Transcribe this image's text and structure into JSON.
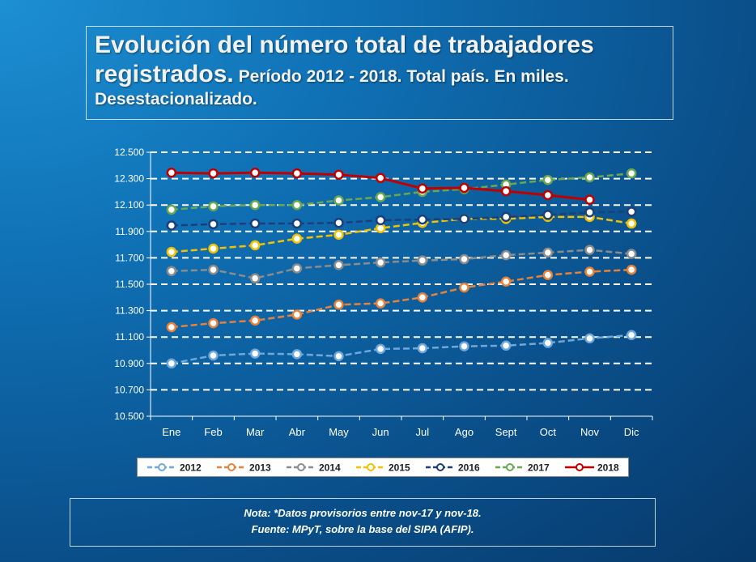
{
  "title": {
    "main_line1": "Evolución del número total de trabajadores",
    "main_line2": "registrados.",
    "sub_line2": " Período 2012 - 2018. Total país. En miles.",
    "sub_line3": "Desestacionalizado."
  },
  "note": {
    "line1": "Nota: *Datos provisorios entre nov-17 y nov-18.",
    "line2": "Fuente: MPyT, sobre la base del SIPA (AFIP)."
  },
  "chart_data": {
    "type": "line",
    "categories": [
      "Ene",
      "Feb",
      "Mar",
      "Abr",
      "May",
      "Jun",
      "Jul",
      "Ago",
      "Sept",
      "Oct",
      "Nov",
      "Dic"
    ],
    "ylim": [
      10500,
      12500
    ],
    "yticks": [
      10500,
      10700,
      10900,
      11100,
      11300,
      11500,
      11700,
      11900,
      12100,
      12300,
      12500
    ],
    "ytick_labels": [
      "10.500",
      "10.700",
      "10.900",
      "11.100",
      "11.300",
      "11.500",
      "11.700",
      "11.900",
      "12.100",
      "12.300",
      "12.500"
    ],
    "grid": true,
    "legend_position": "bottom",
    "series": [
      {
        "name": "2012",
        "color": "#6fa8dc",
        "dashed": true,
        "values": [
          10900,
          10960,
          10975,
          10970,
          10955,
          11010,
          11015,
          11030,
          11035,
          11055,
          11090,
          11115
        ]
      },
      {
        "name": "2013",
        "color": "#e6823a",
        "dashed": true,
        "values": [
          11175,
          11205,
          11225,
          11270,
          11345,
          11355,
          11400,
          11475,
          11520,
          11570,
          11595,
          11610
        ]
      },
      {
        "name": "2014",
        "color": "#8c8c8c",
        "dashed": true,
        "values": [
          11600,
          11610,
          11545,
          11620,
          11645,
          11665,
          11680,
          11690,
          11720,
          11740,
          11760,
          11730
        ]
      },
      {
        "name": "2015",
        "color": "#f2c200",
        "dashed": true,
        "values": [
          11745,
          11770,
          11795,
          11845,
          11875,
          11925,
          11965,
          11995,
          11995,
          12010,
          12010,
          11960
        ]
      },
      {
        "name": "2016",
        "color": "#1a3f7a",
        "dashed": true,
        "values": [
          11945,
          11955,
          11960,
          11960,
          11965,
          11985,
          11990,
          11995,
          12010,
          12025,
          12045,
          12050
        ]
      },
      {
        "name": "2017",
        "color": "#6aa84f",
        "dashed": true,
        "values": [
          12065,
          12090,
          12100,
          12100,
          12135,
          12160,
          12200,
          12220,
          12255,
          12290,
          12310,
          12340
        ]
      },
      {
        "name": "2018",
        "color": "#c00000",
        "dashed": false,
        "values": [
          12345,
          12340,
          12345,
          12340,
          12330,
          12305,
          12225,
          12230,
          12205,
          12175,
          12140,
          null
        ]
      }
    ]
  }
}
